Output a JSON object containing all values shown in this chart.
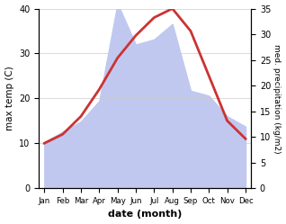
{
  "months": [
    "Jan",
    "Feb",
    "Mar",
    "Apr",
    "May",
    "Jun",
    "Jul",
    "Aug",
    "Sep",
    "Oct",
    "Nov",
    "Dec"
  ],
  "temperature": [
    10,
    12,
    16,
    22,
    29,
    34,
    38,
    40,
    35,
    25,
    15,
    11
  ],
  "precipitation": [
    9,
    11,
    13,
    17,
    36,
    28,
    29,
    32,
    19,
    18,
    14,
    12
  ],
  "temp_color": "#cc3333",
  "precip_fill_color": "#c0c8f0",
  "temp_ylim": [
    0,
    40
  ],
  "precip_ylim": [
    0,
    35
  ],
  "xlabel": "date (month)",
  "ylabel_left": "max temp (C)",
  "ylabel_right": "med. precipitation (kg/m2)",
  "bg_color": "#ffffff",
  "temp_linewidth": 2.0
}
